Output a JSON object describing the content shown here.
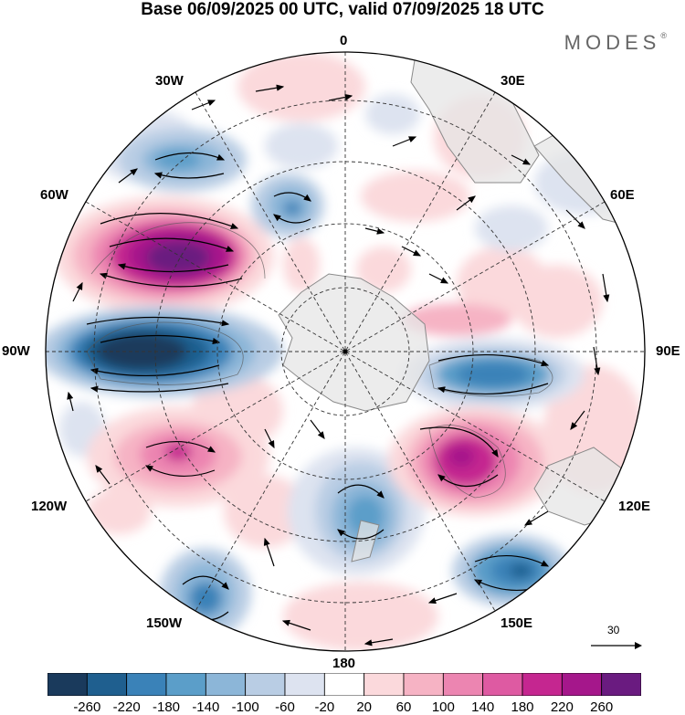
{
  "title": "Base 06/09/2025 00 UTC, valid 07/09/2025 18 UTC",
  "brand": "MODES",
  "brand_mark": "®",
  "longitude_labels": {
    "n0": "0",
    "n30e": "30E",
    "n60e": "60E",
    "n90e": "90E",
    "n120e": "120E",
    "n150e": "150E",
    "n180": "180",
    "n150w": "150W",
    "n120w": "120W",
    "n90w": "90W",
    "n60w": "60W",
    "n30w": "30W"
  },
  "reference_vector": {
    "label": "30",
    "value": 30
  },
  "colorbar": {
    "labels": [
      "-260",
      "-220",
      "-180",
      "-140",
      "-100",
      "-60",
      "-20",
      "20",
      "60",
      "100",
      "140",
      "180",
      "220",
      "260"
    ],
    "colors": [
      "#1a3a5c",
      "#1f5f8f",
      "#3a82b8",
      "#5b9ec9",
      "#8cb6d8",
      "#b9cde4",
      "#dde3f0",
      "#ffffff",
      "#fbd9dc",
      "#f6b3c4",
      "#ec85b1",
      "#de5aa2",
      "#c52690",
      "#a5178b",
      "#6a1b80"
    ]
  },
  "colors": {
    "land": "#e6e6e6",
    "coast": "#8a8a8a",
    "grid": "#333333"
  }
}
